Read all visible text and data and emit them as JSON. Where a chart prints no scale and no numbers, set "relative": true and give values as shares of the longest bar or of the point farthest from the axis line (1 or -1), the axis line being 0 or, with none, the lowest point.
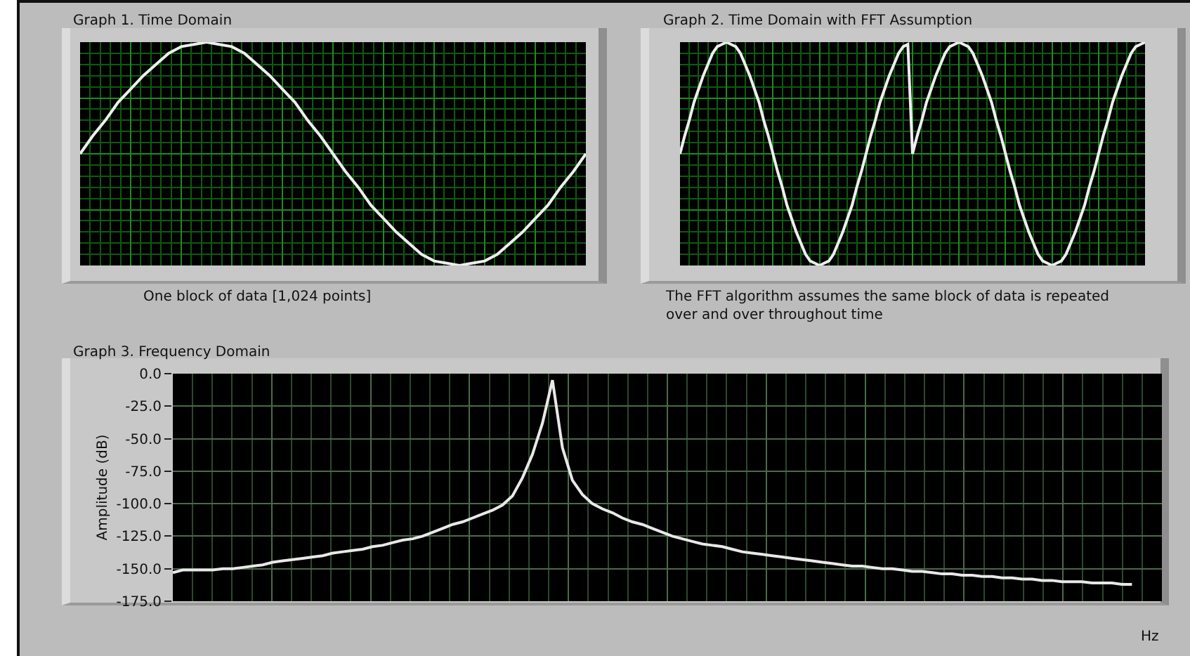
{
  "chart_data": [
    {
      "type": "line",
      "title": "Graph 1. Time Domain",
      "annotations": [
        "One block of data [1,024 points]"
      ],
      "relative": true,
      "grid": true,
      "tick_labels": false,
      "categories": [
        null,
        null,
        null,
        null,
        null,
        null,
        null,
        null,
        null,
        null,
        null,
        null,
        null,
        null,
        null,
        null,
        null,
        null,
        null,
        null,
        null,
        null,
        null,
        null,
        null,
        null,
        null,
        null,
        null,
        null,
        null,
        null,
        null,
        null,
        null,
        null,
        null,
        null,
        null,
        null,
        null
      ],
      "series": [
        {
          "color": "#eeeeee",
          "values": [
            0.5,
            0.58,
            0.65,
            0.73,
            0.79,
            0.85,
            0.9,
            0.95,
            0.98,
            0.99,
            1,
            0.99,
            0.98,
            0.95,
            0.9,
            0.85,
            0.79,
            0.73,
            0.65,
            0.58,
            0.5,
            0.42,
            0.35,
            0.27,
            0.21,
            0.15,
            0.1,
            0.05,
            0.02,
            0.01,
            0,
            0.01,
            0.02,
            0.05,
            0.1,
            0.15,
            0.21,
            0.27,
            0.35,
            0.42,
            0.5
          ]
        }
      ]
    },
    {
      "type": "line",
      "title": "Graph 2. Time Domain with FFT Assumption",
      "annotations": [
        "The FFT algorithm assumes the same block of data is repeated over and over throughout time"
      ],
      "relative": true,
      "grid": true,
      "tick_labels": false,
      "categories": [
        null,
        null,
        null,
        null,
        null,
        null,
        null,
        null,
        null,
        null,
        null,
        null,
        null,
        null,
        null,
        null,
        null,
        null,
        null,
        null,
        null,
        null,
        null,
        null,
        null,
        null,
        null,
        null,
        null,
        null,
        null,
        null,
        null,
        null,
        null,
        null,
        null,
        null,
        null,
        null,
        null,
        null,
        null,
        null,
        null,
        null,
        null,
        null,
        null,
        null,
        null,
        null,
        null,
        null,
        null,
        null,
        null,
        null,
        null,
        null,
        null,
        null,
        null,
        null,
        null,
        null,
        null,
        null,
        null,
        null,
        null,
        null,
        null,
        null,
        null,
        null,
        null,
        null,
        null,
        null,
        null,
        null,
        null,
        null,
        null,
        null,
        null,
        null,
        null,
        null,
        null,
        null,
        null,
        null,
        null,
        null,
        null,
        null,
        null,
        null,
        null
      ],
      "series": [
        {
          "color": "#eeeeee",
          "values": [
            0.5,
            0.58,
            0.65,
            0.73,
            0.79,
            0.85,
            0.9,
            0.95,
            0.98,
            0.99,
            1,
            0.99,
            0.98,
            0.95,
            0.9,
            0.85,
            0.79,
            0.73,
            0.65,
            0.58,
            0.5,
            0.42,
            0.35,
            0.27,
            0.21,
            0.15,
            0.1,
            0.05,
            0.02,
            0.01,
            0,
            0.01,
            0.02,
            0.05,
            0.1,
            0.15,
            0.21,
            0.27,
            0.35,
            0.42,
            0.5,
            0.58,
            0.65,
            0.73,
            0.79,
            0.85,
            0.9,
            0.95,
            0.98,
            0.99,
            0.5,
            0.58,
            0.65,
            0.73,
            0.79,
            0.85,
            0.9,
            0.95,
            0.98,
            0.99,
            1,
            0.99,
            0.98,
            0.95,
            0.9,
            0.85,
            0.79,
            0.73,
            0.65,
            0.58,
            0.5,
            0.42,
            0.35,
            0.27,
            0.21,
            0.15,
            0.1,
            0.05,
            0.02,
            0.01,
            0,
            0.01,
            0.02,
            0.05,
            0.1,
            0.15,
            0.21,
            0.27,
            0.35,
            0.42,
            0.5,
            0.58,
            0.65,
            0.73,
            0.79,
            0.85,
            0.9,
            0.95,
            0.98,
            0.99,
            1
          ]
        }
      ]
    },
    {
      "type": "line",
      "title": "Graph 3. Frequency Domain",
      "xlabel": "Hz",
      "ylabel": "Amplitude (dB)",
      "grid": true,
      "tick_labels": "y",
      "ylim": [
        -175,
        0
      ],
      "yticks": [
        {
          "value": 0,
          "label": "0.0"
        },
        {
          "value": -25,
          "label": "-25.0"
        },
        {
          "value": -50,
          "label": "-50.0"
        },
        {
          "value": -75,
          "label": "-75.0"
        },
        {
          "value": -100,
          "label": "-100.0"
        },
        {
          "value": -125,
          "label": "-125.0"
        },
        {
          "value": -150,
          "label": "-150.0"
        },
        {
          "value": -175,
          "label": "-175.0"
        }
      ],
      "categories": [
        null,
        null,
        null,
        null,
        null,
        null,
        null,
        null,
        null,
        null,
        null,
        null,
        null,
        null,
        null,
        null,
        null,
        null,
        null,
        null,
        null,
        null,
        null,
        null,
        null,
        null,
        null,
        null,
        null,
        null,
        null,
        null,
        null,
        null,
        null,
        null,
        null,
        null,
        null,
        null,
        null,
        null,
        null,
        null,
        null,
        null,
        null,
        null,
        null,
        null,
        null,
        null,
        null,
        null,
        null,
        null,
        null,
        null,
        null,
        null,
        null,
        null,
        null,
        null,
        null,
        null,
        null,
        null,
        null,
        null,
        null,
        null,
        null,
        null,
        null,
        null,
        null,
        null,
        null,
        null,
        null,
        null,
        null,
        null,
        null,
        null,
        null,
        null,
        null,
        null,
        null,
        null,
        null,
        null,
        null,
        null,
        null,
        null,
        null,
        null
      ],
      "series": [
        {
          "color": "#e8e8e8",
          "values": [
            -153,
            -151,
            -151,
            -151,
            -151,
            -150,
            -150,
            -149,
            -148,
            -147,
            -145,
            -144,
            -143,
            -142,
            -141,
            -140,
            -138,
            -137,
            -136,
            -135,
            -133,
            -132,
            -130,
            -128,
            -127,
            -125,
            -122,
            -119,
            -116,
            -114,
            -111,
            -108,
            -105,
            -101,
            -94,
            -80,
            -62,
            -38,
            -5,
            -57,
            -82,
            -93,
            -100,
            -104,
            -107,
            -111,
            -114,
            -116,
            -119,
            -122,
            -125,
            -127,
            -129,
            -131,
            -132,
            -133,
            -135,
            -137,
            -138,
            -139,
            -140,
            -141,
            -142,
            -143,
            -144,
            -145,
            -146,
            -147,
            -148,
            -148,
            -149,
            -150,
            -150,
            -151,
            -152,
            -152,
            -153,
            -154,
            -154,
            -155,
            -155,
            -156,
            -156,
            -157,
            -157,
            -158,
            -158,
            -159,
            -159,
            -160,
            -160,
            -160,
            -161,
            -161,
            -161,
            -162,
            -162,
            null,
            null,
            null
          ]
        }
      ]
    }
  ]
}
